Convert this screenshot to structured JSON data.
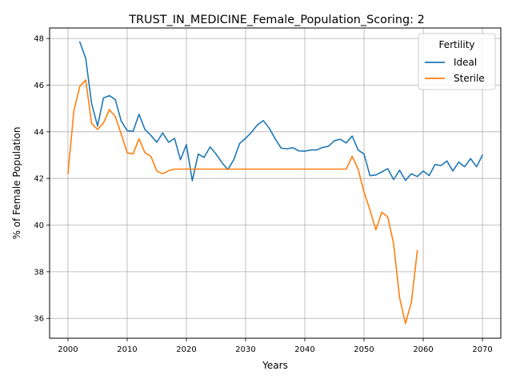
{
  "chart_data": {
    "type": "line",
    "title": "TRUST_IN_MEDICINE_Female_Population_Scoring: 2",
    "xlabel": "Years",
    "ylabel": "% of Female Population",
    "xlim": [
      1996.9,
      2073.1
    ],
    "ylim": [
      35.15,
      48.45
    ],
    "xticks": [
      2000,
      2010,
      2020,
      2030,
      2040,
      2050,
      2060,
      2070
    ],
    "yticks": [
      36,
      38,
      40,
      42,
      44,
      46,
      48
    ],
    "grid": true,
    "legend": {
      "title": "Fertility",
      "position": "top-right"
    },
    "series": [
      {
        "name": "Ideal",
        "color": "#1f77b4",
        "x": [
          2002,
          2003,
          2004,
          2005,
          2006,
          2007,
          2008,
          2009,
          2010,
          2011,
          2012,
          2013,
          2014,
          2015,
          2016,
          2017,
          2018,
          2019,
          2020,
          2021,
          2022,
          2023,
          2024,
          2025,
          2026,
          2027,
          2028,
          2029,
          2030,
          2031,
          2032,
          2033,
          2034,
          2035,
          2036,
          2037,
          2038,
          2039,
          2040,
          2041,
          2042,
          2043,
          2044,
          2045,
          2046,
          2047,
          2048,
          2049,
          2050,
          2051,
          2052,
          2053,
          2054,
          2055,
          2056,
          2057,
          2058,
          2059,
          2060,
          2061,
          2062,
          2063,
          2064,
          2065,
          2066,
          2067,
          2068,
          2069,
          2070
        ],
        "y": [
          47.85,
          47.15,
          45.2,
          44.25,
          45.45,
          45.55,
          45.38,
          44.45,
          44.05,
          44.02,
          44.75,
          44.1,
          43.85,
          43.55,
          43.95,
          43.55,
          43.72,
          42.8,
          43.45,
          41.9,
          43.05,
          42.9,
          43.35,
          43.05,
          42.68,
          42.38,
          42.8,
          43.5,
          43.72,
          43.98,
          44.3,
          44.48,
          44.15,
          43.7,
          43.3,
          43.27,
          43.32,
          43.18,
          43.17,
          43.22,
          43.22,
          43.33,
          43.38,
          43.62,
          43.68,
          43.52,
          43.82,
          43.22,
          43.05,
          42.12,
          42.15,
          42.28,
          42.42,
          41.95,
          42.35,
          41.92,
          42.2,
          42.08,
          42.32,
          42.12,
          42.6,
          42.55,
          42.75,
          42.32,
          42.7,
          42.5,
          42.85,
          42.5,
          43.0
        ]
      },
      {
        "name": "Sterile",
        "color": "#ff7f0e",
        "x": [
          2000,
          2001,
          2002,
          2003,
          2004,
          2005,
          2006,
          2007,
          2008,
          2009,
          2010,
          2011,
          2012,
          2013,
          2014,
          2015,
          2016,
          2017,
          2018,
          2019,
          2020,
          2021,
          2022,
          2023,
          2024,
          2025,
          2026,
          2027,
          2028,
          2029,
          2030,
          2031,
          2032,
          2033,
          2034,
          2035,
          2036,
          2037,
          2038,
          2039,
          2040,
          2041,
          2042,
          2043,
          2044,
          2045,
          2046,
          2047,
          2048,
          2049,
          2050,
          2051,
          2052,
          2053,
          2054,
          2055,
          2056,
          2057,
          2058,
          2059
        ],
        "y": [
          42.2,
          44.9,
          45.95,
          46.22,
          44.35,
          44.1,
          44.38,
          44.95,
          44.65,
          43.9,
          43.1,
          43.05,
          43.7,
          43.1,
          42.95,
          42.32,
          42.2,
          42.33,
          42.4,
          42.4,
          42.4,
          42.4,
          42.4,
          42.4,
          42.4,
          42.4,
          42.4,
          42.4,
          42.4,
          42.4,
          42.4,
          42.4,
          42.4,
          42.4,
          42.4,
          42.4,
          42.4,
          42.4,
          42.4,
          42.4,
          42.4,
          42.4,
          42.4,
          42.4,
          42.4,
          42.4,
          42.4,
          42.4,
          42.95,
          42.4,
          41.42,
          40.65,
          39.8,
          40.55,
          40.35,
          39.2,
          36.9,
          35.78,
          36.7,
          38.9
        ]
      }
    ]
  }
}
